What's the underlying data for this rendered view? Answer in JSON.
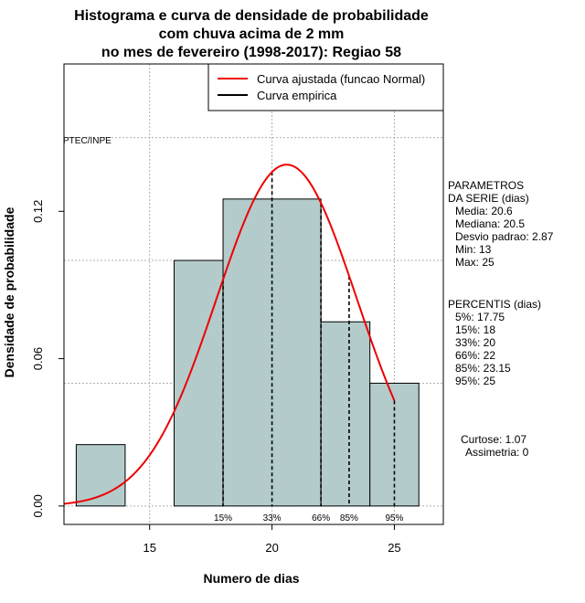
{
  "chart_data": {
    "type": "bar",
    "title_lines": [
      "Histograma e curva de densidade de probabilidade",
      "com chuva acima de 2 mm",
      "no mes de fevereiro (1998-2017): Regiao 58"
    ],
    "xlabel": "Numero de dias",
    "ylabel": "Densidade de probabilidade",
    "xlim": [
      11.5,
      27.0
    ],
    "ylim": [
      0.0,
      0.18
    ],
    "x_ticks": [
      15,
      20,
      25
    ],
    "y_ticks": [
      0.0,
      0.06,
      0.12
    ],
    "y_tick_labels": [
      "0.00",
      "0.06",
      "0.12"
    ],
    "bins": [
      {
        "start": 12,
        "end": 14,
        "density": 0.025
      },
      {
        "start": 14,
        "end": 16,
        "density": 0.0
      },
      {
        "start": 16,
        "end": 18,
        "density": 0.1
      },
      {
        "start": 18,
        "end": 22,
        "density": 0.125
      },
      {
        "start": 22,
        "end": 24,
        "density": 0.075
      },
      {
        "start": 24,
        "end": 26,
        "density": 0.05
      }
    ],
    "normal_fit": {
      "mean": 20.6,
      "sd": 2.87,
      "x_from": 11.5,
      "x_to": 25.0
    },
    "gridlines_x": [
      15,
      20,
      25
    ],
    "gridlines_y": [
      0.0,
      0.05,
      0.1,
      0.15
    ],
    "percentiles": [
      {
        "label": "15%",
        "x": 18.0
      },
      {
        "label": "33%",
        "x": 20.0
      },
      {
        "label": "66%",
        "x": 22.0
      },
      {
        "label": "85%",
        "x": 23.15
      },
      {
        "label": "95%",
        "x": 25.0
      }
    ],
    "legend": {
      "position": "top-right",
      "entries": [
        {
          "label": "Curva ajustada (funcao Normal)",
          "color": "#ee0000"
        },
        {
          "label": "Curva empirica",
          "color": "#000000"
        }
      ]
    },
    "watermark": "PTEC/INPE",
    "side_panel": {
      "parametros_lines": [
        "PARAMETROS",
        "DA SERIE (dias)",
        "Media: 20.6",
        "Mediana: 20.5",
        "Desvio padrao: 2.87",
        "Min: 13",
        "Max: 25"
      ],
      "percentis_lines": [
        "PERCENTIS (dias)",
        "5%: 17.75",
        "15%: 18",
        "33%: 20",
        "66%: 22",
        "85%: 23.15",
        "95%: 25"
      ],
      "shape_lines": [
        "Curtose: 1.07",
        "Assimetria: 0"
      ]
    },
    "colors": {
      "bar_fill": "#b4cbcb",
      "bar_stroke": "#000000",
      "curve": "#ee0000",
      "grid": "#b0b0b0",
      "percentile_line": "#000000"
    }
  }
}
